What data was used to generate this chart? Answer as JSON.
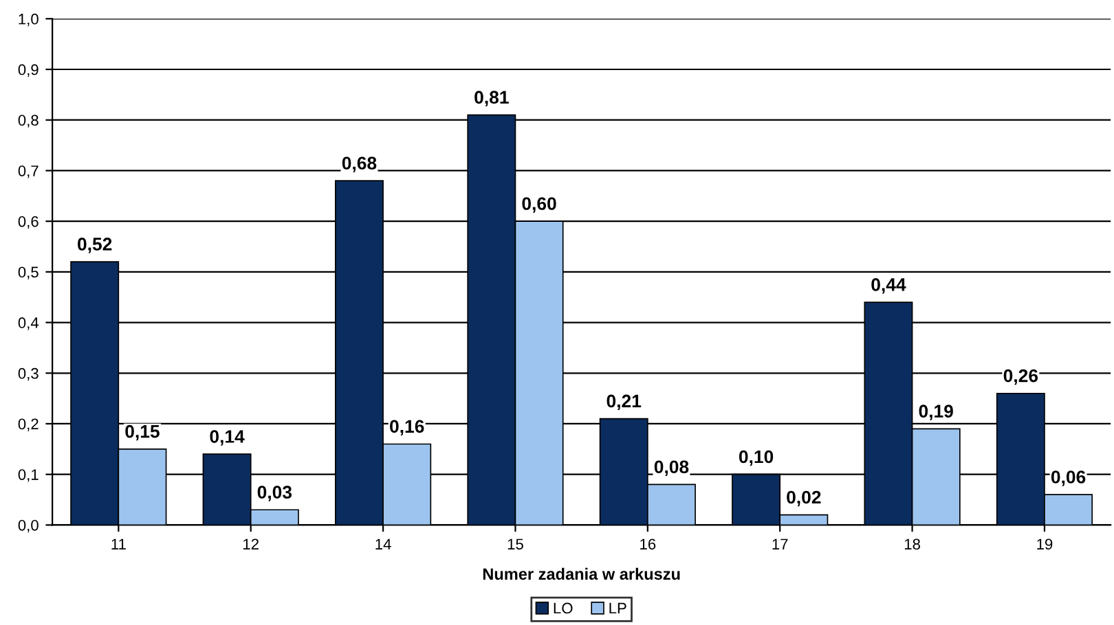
{
  "chart_data": {
    "type": "bar",
    "xlabel": "Numer zadania w arkuszu",
    "categories": [
      "11",
      "12",
      "14",
      "15",
      "16",
      "17",
      "18",
      "19"
    ],
    "series": [
      {
        "name": "LO",
        "color": "#0b2c5e",
        "values": [
          0.52,
          0.14,
          0.68,
          0.81,
          0.21,
          0.1,
          0.44,
          0.26
        ],
        "value_labels": [
          "0,52",
          "0,14",
          "0,68",
          "0,81",
          "0,21",
          "0,10",
          "0,44",
          "0,26"
        ]
      },
      {
        "name": "LP",
        "color": "#9dc4ef",
        "values": [
          0.15,
          0.03,
          0.16,
          0.6,
          0.08,
          0.02,
          0.19,
          0.06
        ],
        "value_labels": [
          "0,15",
          "0,03",
          "0,16",
          "0,60",
          "0,08",
          "0,02",
          "0,19",
          "0,06"
        ]
      }
    ],
    "ylim": [
      0,
      1
    ],
    "yticks": [
      {
        "value": 0,
        "label": "0,0"
      },
      {
        "value": 0.1,
        "label": "0,1"
      },
      {
        "value": 0.2,
        "label": "0,2"
      },
      {
        "value": 0.3,
        "label": "0,3"
      },
      {
        "value": 0.4,
        "label": "0,4"
      },
      {
        "value": 0.5,
        "label": "0,5"
      },
      {
        "value": 0.6,
        "label": "0,6"
      },
      {
        "value": 0.7,
        "label": "0,7"
      },
      {
        "value": 0.8,
        "label": "0,8"
      },
      {
        "value": 0.9,
        "label": "0,9"
      },
      {
        "value": 1,
        "label": "1,0"
      }
    ],
    "grid": "y",
    "legend": "bottom"
  }
}
